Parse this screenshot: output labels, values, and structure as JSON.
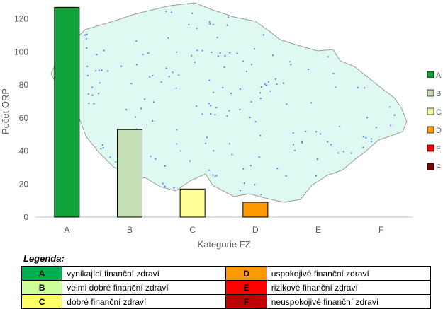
{
  "chart_data": {
    "type": "bar",
    "categories": [
      "A",
      "B",
      "C",
      "D",
      "E",
      "F"
    ],
    "values": [
      127,
      53,
      17,
      9,
      0,
      0
    ],
    "colors": [
      "#0fa33a",
      "#c5e0b4",
      "#ffff99",
      "#ff9900",
      "#ff0000",
      "#800000"
    ],
    "xlabel": "Kategorie FZ",
    "ylabel": "Počet ORP",
    "ylim": [
      0,
      120
    ],
    "yticks": [
      0,
      20,
      40,
      60,
      80,
      100,
      120
    ],
    "legend": [
      "A",
      "B",
      "C",
      "D",
      "E",
      "F"
    ],
    "legend_position": "right",
    "background_image": "map-of-czech-republic-orp-districts"
  },
  "legend_table": {
    "title": "Legenda:",
    "rows": [
      [
        {
          "code": "A",
          "color": "#00b050",
          "text": "vynikající finanční zdraví"
        },
        {
          "code": "D",
          "color": "#ff9900",
          "text": "uspokojivé finanční zdraví"
        }
      ],
      [
        {
          "code": "B",
          "color": "#ccff99",
          "text": "velmi dobré finanční zdraví"
        },
        {
          "code": "E",
          "color": "#ff0000",
          "text": "rizikové finanční zdraví"
        }
      ],
      [
        {
          "code": "C",
          "color": "#ffff66",
          "text": "dobré finanční zdraví"
        },
        {
          "code": "F",
          "color": "#c00000",
          "text": "neuspokojivé finanční zdraví"
        }
      ]
    ]
  }
}
